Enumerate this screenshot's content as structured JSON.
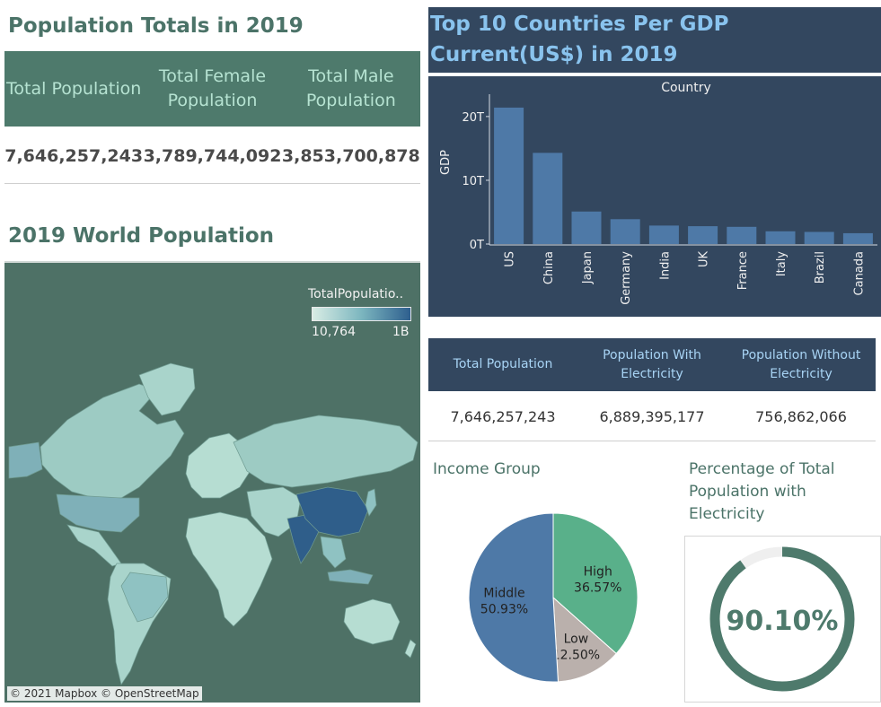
{
  "population_totals": {
    "title": "Population Totals in 2019",
    "headers": [
      "Total Population",
      "Total Female Population",
      "Total Male Population"
    ],
    "values": [
      "7,646,257,243",
      "3,789,744,092",
      "3,853,700,878"
    ]
  },
  "world_map": {
    "title": "2019 World Population",
    "legend_title": "TotalPopulatio..",
    "legend_min": "10,764",
    "legend_max": "1B",
    "attribution": "© 2021 Mapbox © OpenStreetMap"
  },
  "gdp": {
    "title": "Top 10 Countries Per GDP Current(US$) in 2019",
    "chart_data": {
      "type": "bar",
      "title": "Country",
      "ylabel": "GDP",
      "categories": [
        "US",
        "China",
        "Japan",
        "Germany",
        "India",
        "UK",
        "France",
        "Italy",
        "Brazil",
        "Canada"
      ],
      "values": [
        21.4,
        14.3,
        5.1,
        3.9,
        2.9,
        2.8,
        2.7,
        2.0,
        1.9,
        1.7
      ],
      "ytick_labels": [
        "0T",
        "10T",
        "20T"
      ],
      "yticks": [
        0,
        10,
        20
      ],
      "ylim": [
        0,
        23.5
      ],
      "bar_color": "#4e79a7"
    }
  },
  "electricity": {
    "headers": [
      "Total Population",
      "Population With Electricity",
      "Population Without Electricity"
    ],
    "values": [
      "7,646,257,243",
      "6,889,395,177",
      "756,862,066"
    ]
  },
  "income_group": {
    "title": "Income Group",
    "chart_data": {
      "type": "pie",
      "slices": [
        {
          "label": "High",
          "value": 36.57,
          "text": "36.57%",
          "color": "#59b08a"
        },
        {
          "label": "Low",
          "value": 12.5,
          "text": "12.50%",
          "color": "#bab0ac"
        },
        {
          "label": "Middle",
          "value": 50.93,
          "text": "50.93%",
          "color": "#4e79a7"
        }
      ]
    }
  },
  "electricity_pct": {
    "title": "Percentage of Total Population with Electricity",
    "value_text": "90.10%",
    "fraction": 0.901,
    "ring_color": "#4e7a6c",
    "track_color": "#efefef"
  }
}
